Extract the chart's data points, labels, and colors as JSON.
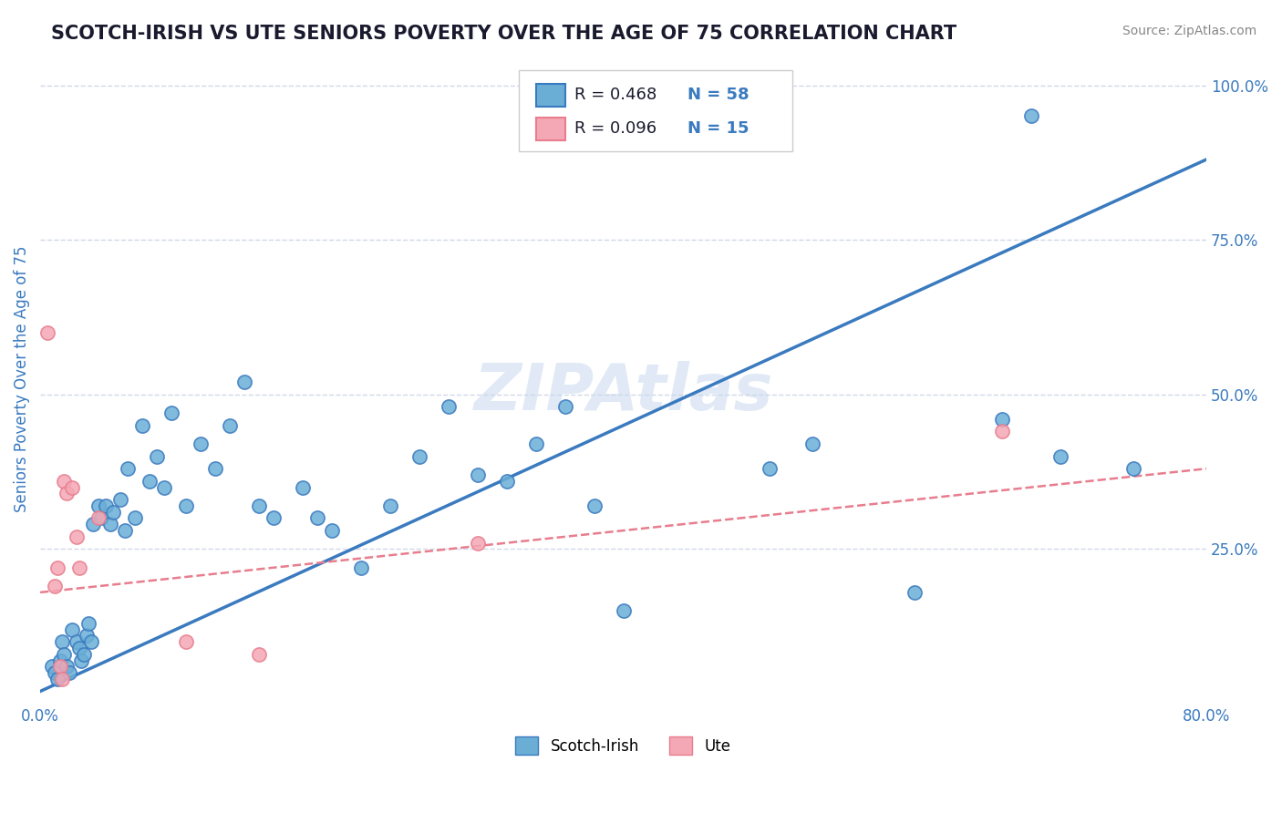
{
  "title": "SCOTCH-IRISH VS UTE SENIORS POVERTY OVER THE AGE OF 75 CORRELATION CHART",
  "source": "Source: ZipAtlas.com",
  "ylabel": "Seniors Poverty Over the Age of 75",
  "xlim": [
    0.0,
    0.8
  ],
  "ylim": [
    0.0,
    1.05
  ],
  "xticks": [
    0.0,
    0.2,
    0.4,
    0.6,
    0.8
  ],
  "xticklabels": [
    "0.0%",
    "",
    "",
    "",
    "80.0%"
  ],
  "yticks": [
    0.0,
    0.25,
    0.5,
    0.75,
    1.0
  ],
  "yticklabels_right": [
    "",
    "25.0%",
    "50.0%",
    "75.0%",
    "100.0%"
  ],
  "legend_blue_r": "0.468",
  "legend_blue_n": "58",
  "legend_pink_r": "0.096",
  "legend_pink_n": "15",
  "blue_color": "#6aaed6",
  "pink_color": "#f4a7b4",
  "trendline_blue_color": "#3a7abf",
  "trendline_pink_color": "#e87d8e",
  "watermark": "ZIPAtlas",
  "background_color": "#ffffff",
  "grid_color": "#d0d8e8",
  "scotch_irish_points": [
    [
      0.008,
      0.06
    ],
    [
      0.01,
      0.05
    ],
    [
      0.012,
      0.04
    ],
    [
      0.014,
      0.07
    ],
    [
      0.015,
      0.1
    ],
    [
      0.016,
      0.08
    ],
    [
      0.018,
      0.06
    ],
    [
      0.02,
      0.05
    ],
    [
      0.022,
      0.12
    ],
    [
      0.025,
      0.1
    ],
    [
      0.027,
      0.09
    ],
    [
      0.028,
      0.07
    ],
    [
      0.03,
      0.08
    ],
    [
      0.032,
      0.11
    ],
    [
      0.033,
      0.13
    ],
    [
      0.035,
      0.1
    ],
    [
      0.036,
      0.29
    ],
    [
      0.04,
      0.32
    ],
    [
      0.042,
      0.3
    ],
    [
      0.045,
      0.32
    ],
    [
      0.048,
      0.29
    ],
    [
      0.05,
      0.31
    ],
    [
      0.055,
      0.33
    ],
    [
      0.058,
      0.28
    ],
    [
      0.06,
      0.38
    ],
    [
      0.065,
      0.3
    ],
    [
      0.07,
      0.45
    ],
    [
      0.075,
      0.36
    ],
    [
      0.08,
      0.4
    ],
    [
      0.085,
      0.35
    ],
    [
      0.09,
      0.47
    ],
    [
      0.1,
      0.32
    ],
    [
      0.11,
      0.42
    ],
    [
      0.12,
      0.38
    ],
    [
      0.13,
      0.45
    ],
    [
      0.14,
      0.52
    ],
    [
      0.15,
      0.32
    ],
    [
      0.16,
      0.3
    ],
    [
      0.18,
      0.35
    ],
    [
      0.19,
      0.3
    ],
    [
      0.2,
      0.28
    ],
    [
      0.22,
      0.22
    ],
    [
      0.24,
      0.32
    ],
    [
      0.26,
      0.4
    ],
    [
      0.28,
      0.48
    ],
    [
      0.3,
      0.37
    ],
    [
      0.32,
      0.36
    ],
    [
      0.34,
      0.42
    ],
    [
      0.36,
      0.48
    ],
    [
      0.38,
      0.32
    ],
    [
      0.4,
      0.15
    ],
    [
      0.5,
      0.38
    ],
    [
      0.53,
      0.42
    ],
    [
      0.6,
      0.18
    ],
    [
      0.66,
      0.46
    ],
    [
      0.68,
      0.95
    ],
    [
      0.7,
      0.4
    ],
    [
      0.75,
      0.38
    ]
  ],
  "ute_points": [
    [
      0.005,
      0.6
    ],
    [
      0.01,
      0.19
    ],
    [
      0.012,
      0.22
    ],
    [
      0.014,
      0.06
    ],
    [
      0.015,
      0.04
    ],
    [
      0.016,
      0.36
    ],
    [
      0.018,
      0.34
    ],
    [
      0.022,
      0.35
    ],
    [
      0.025,
      0.27
    ],
    [
      0.027,
      0.22
    ],
    [
      0.04,
      0.3
    ],
    [
      0.1,
      0.1
    ],
    [
      0.15,
      0.08
    ],
    [
      0.66,
      0.44
    ],
    [
      0.3,
      0.26
    ]
  ],
  "blue_trend_x": [
    0.0,
    0.8
  ],
  "blue_trend_y": [
    0.02,
    0.88
  ],
  "pink_trend_x": [
    0.0,
    0.8
  ],
  "pink_trend_y": [
    0.18,
    0.38
  ]
}
